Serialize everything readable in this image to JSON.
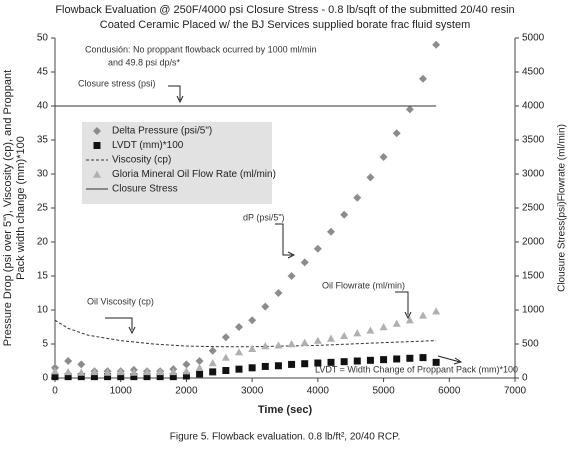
{
  "chart_data": {
    "type": "scatter",
    "title": [
      "Flowback Evaluation @ 250F/4000 psi Closure Stress - 0.8 lb/sqft of the submitted 20/40 resin",
      "Coated Ceramic Placed w/ the BJ Services supplied borate frac fluid system"
    ],
    "xlabel": "Time (sec)",
    "ylabel": [
      "Pressure Drop (psi over 5\"), Viscosity (cp), and Proppant",
      "Pack width change (mm)*100"
    ],
    "y2label": "Clousure Stress(psi)Flowrate (ml/min)",
    "caption": "Figure 5.  Flowback evaluation. 0.8 lb/ft², 20/40 RCP.",
    "xlim": [
      0,
      7000
    ],
    "xticks": [
      0,
      1000,
      2000,
      3000,
      4000,
      5000,
      6000,
      7000
    ],
    "ylim": [
      0,
      50
    ],
    "yticks": [
      0,
      5,
      10,
      15,
      20,
      25,
      30,
      35,
      40,
      45,
      50
    ],
    "y2lim": [
      0,
      5000
    ],
    "y2ticks": [
      0,
      500,
      1000,
      1500,
      2000,
      2500,
      3000,
      3500,
      4000,
      4500,
      5000
    ],
    "annotations": [
      "Condusión: No proppant flowback ocurred by 1000 ml/min",
      "and 49.8 psi dp/s*",
      "Closure stress (psi)",
      "dP (psi/5\")",
      "Oil Viscosity (cp)",
      "Oil Flowrate (ml/min)",
      "LVDT = Width Change of Proppant Pack (mm)*100"
    ],
    "series": [
      {
        "name": "Delta Pressure (psi/5\")",
        "color": "#8c8c8c",
        "marker": "diamond",
        "x": [
          0,
          200,
          400,
          600,
          800,
          1000,
          1200,
          1400,
          1600,
          1800,
          2000,
          2200,
          2400,
          2600,
          2800,
          3000,
          3200,
          3400,
          3600,
          3800,
          4000,
          4200,
          4400,
          4600,
          4800,
          5000,
          5200,
          5400,
          5600,
          5800
        ],
        "values": [
          1.5,
          2.5,
          2.0,
          1.0,
          1.0,
          1.0,
          1.2,
          1.0,
          1.0,
          1.3,
          2.0,
          2.5,
          4.0,
          6.0,
          7.5,
          8.5,
          10.5,
          12.5,
          15.0,
          17.0,
          19.0,
          21.5,
          24.0,
          26.5,
          29.5,
          32.5,
          36.0,
          39.5,
          44.0,
          49.0
        ]
      },
      {
        "name": "LVDT (mm)*100",
        "color": "#111111",
        "marker": "square",
        "x": [
          0,
          200,
          400,
          600,
          800,
          1000,
          1200,
          1400,
          1600,
          1800,
          2000,
          2200,
          2400,
          2600,
          2800,
          3000,
          3200,
          3400,
          3600,
          3800,
          4000,
          4200,
          4400,
          4600,
          4800,
          5000,
          5200,
          5400,
          5600,
          5800
        ],
        "values": [
          0.2,
          0.2,
          0.2,
          0.2,
          0.2,
          0.2,
          0.2,
          0.2,
          0.2,
          0.2,
          0.3,
          0.6,
          0.9,
          1.1,
          1.3,
          1.5,
          1.7,
          1.8,
          2.0,
          2.1,
          2.2,
          2.3,
          2.4,
          2.5,
          2.6,
          2.7,
          2.8,
          2.9,
          3.0,
          2.3
        ]
      },
      {
        "name": "Viscosity (cp)",
        "color": "#333333",
        "marker": "dashed",
        "x": [
          0,
          200,
          500,
          1000,
          1500,
          2000,
          2500,
          3000,
          3500,
          4000,
          4500,
          5000,
          5800
        ],
        "values": [
          8.5,
          7.3,
          6.3,
          5.5,
          5.0,
          4.7,
          4.6,
          4.6,
          4.7,
          4.8,
          5.0,
          5.2,
          5.5
        ]
      },
      {
        "name": "Gloria Mineral Oil Flow Rate (ml/min)",
        "color": "#b0b0b0",
        "marker": "triangle",
        "axis": "y2",
        "x": [
          0,
          200,
          400,
          600,
          800,
          1000,
          1200,
          1400,
          1600,
          1800,
          2000,
          2200,
          2400,
          2600,
          2800,
          3000,
          3200,
          3400,
          3600,
          3800,
          4000,
          4200,
          4400,
          4600,
          4800,
          5000,
          5200,
          5400,
          5600,
          5800
        ],
        "values": [
          100,
          90,
          80,
          90,
          80,
          90,
          80,
          90,
          90,
          90,
          100,
          150,
          220,
          300,
          380,
          430,
          470,
          480,
          500,
          520,
          550,
          580,
          620,
          660,
          700,
          750,
          800,
          850,
          920,
          980
        ]
      },
      {
        "name": "Closure Stress",
        "color": "#333333",
        "marker": "solid",
        "axis": "y2",
        "x": [
          0,
          5800
        ],
        "values": [
          4000,
          4000
        ]
      }
    ]
  }
}
